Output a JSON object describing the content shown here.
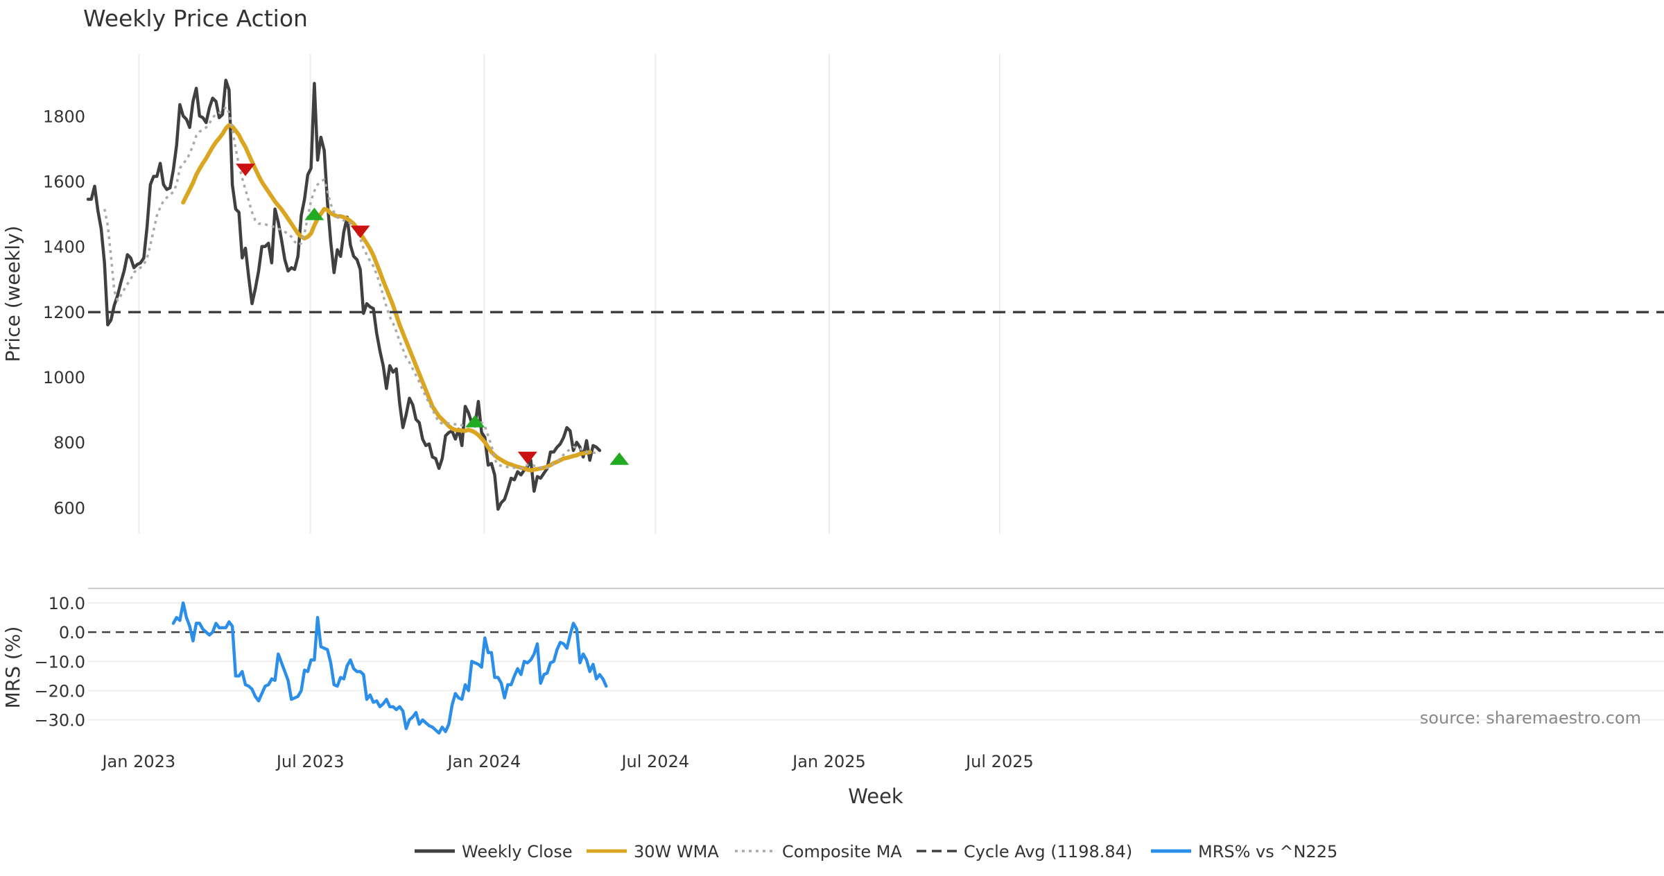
{
  "chart_data": {
    "type": "line",
    "title": "Weekly Price Action",
    "xlabel": "Week",
    "x_ticks": [
      "Jan 2023",
      "Jul 2023",
      "Jan 2024",
      "Jul 2024",
      "Jan 2025",
      "Jul 2025"
    ],
    "price_panel": {
      "ylabel": "Price (weekly)",
      "ylim": [
        520,
        1990
      ],
      "y_ticks": [
        "600",
        "800",
        "1000",
        "1200",
        "1400",
        "1600",
        "1800"
      ],
      "grid": "vertical",
      "series": [
        {
          "name": "Weekly Close",
          "color": "#404040",
          "style": "solid",
          "values": [
            1545,
            1545,
            1585,
            1510,
            1455,
            1350,
            1160,
            1175,
            1220,
            1250,
            1290,
            1325,
            1375,
            1365,
            1335,
            1345,
            1350,
            1365,
            1460,
            1590,
            1615,
            1615,
            1655,
            1590,
            1575,
            1580,
            1635,
            1710,
            1835,
            1800,
            1790,
            1765,
            1845,
            1885,
            1800,
            1795,
            1780,
            1825,
            1855,
            1845,
            1795,
            1805,
            1910,
            1880,
            1590,
            1515,
            1505,
            1365,
            1395,
            1305,
            1225,
            1270,
            1325,
            1400,
            1400,
            1410,
            1350,
            1515,
            1475,
            1420,
            1360,
            1325,
            1335,
            1330,
            1370,
            1495,
            1545,
            1620,
            1640,
            1900,
            1665,
            1735,
            1695,
            1535,
            1415,
            1320,
            1390,
            1370,
            1445,
            1490,
            1405,
            1370,
            1360,
            1330,
            1195,
            1225,
            1215,
            1210,
            1135,
            1080,
            1035,
            965,
            1035,
            1015,
            1025,
            920,
            845,
            885,
            935,
            915,
            870,
            860,
            810,
            790,
            795,
            755,
            750,
            720,
            750,
            820,
            830,
            835,
            810,
            840,
            790,
            910,
            890,
            860,
            850,
            925,
            830,
            815,
            730,
            735,
            700,
            595,
            615,
            625,
            655,
            690,
            685,
            710,
            700,
            715,
            725,
            745,
            650,
            695,
            690,
            705,
            720,
            770,
            770,
            785,
            795,
            815,
            845,
            835,
            775,
            800,
            785,
            755,
            805,
            745,
            790,
            785,
            775
          ],
          "labels": {}
        },
        {
          "name": "30W WMA",
          "color": "#daa520",
          "style": "solid",
          "values": [
            null,
            null,
            null,
            null,
            null,
            null,
            null,
            null,
            null,
            null,
            null,
            null,
            null,
            null,
            null,
            null,
            null,
            null,
            null,
            null,
            null,
            null,
            null,
            null,
            null,
            null,
            null,
            null,
            null,
            1535,
            1555,
            1575,
            1595,
            1620,
            1638,
            1655,
            1670,
            1688,
            1705,
            1720,
            1732,
            1745,
            1762,
            1772,
            1768,
            1755,
            1742,
            1722,
            1705,
            1682,
            1660,
            1638,
            1617,
            1598,
            1583,
            1568,
            1553,
            1538,
            1526,
            1514,
            1500,
            1485,
            1470,
            1455,
            1440,
            1430,
            1425,
            1430,
            1440,
            1465,
            1485,
            1500,
            1515,
            1512,
            1502,
            1497,
            1492,
            1493,
            1490,
            1485,
            1478,
            1470,
            1456,
            1440,
            1425,
            1410,
            1393,
            1373,
            1348,
            1322,
            1295,
            1270,
            1245,
            1220,
            1190,
            1160,
            1135,
            1110,
            1085,
            1060,
            1035,
            1010,
            985,
            960,
            935,
            910,
            895,
            880,
            870,
            860,
            850,
            842,
            838,
            837,
            836,
            835,
            838,
            835,
            830,
            822,
            812,
            800,
            785,
            770,
            760,
            752,
            746,
            740,
            735,
            732,
            728,
            725,
            722,
            720,
            716,
            714,
            716,
            718,
            720,
            722,
            725,
            730,
            736,
            740,
            745,
            750,
            752,
            755,
            758,
            760,
            765,
            766,
            768,
            770
          ],
          "labels": {}
        },
        {
          "name": "Composite MA",
          "color": "#aaaaaa",
          "style": "dotted",
          "values": [
            null,
            null,
            null,
            null,
            null,
            1515,
            1465,
            1370,
            1265,
            1235,
            1250,
            1268,
            1285,
            1300,
            1320,
            1330,
            1335,
            1345,
            1365,
            1405,
            1450,
            1495,
            1520,
            1540,
            1550,
            1558,
            1568,
            1590,
            1640,
            1655,
            1665,
            1685,
            1710,
            1740,
            1752,
            1758,
            1765,
            1778,
            1795,
            1806,
            1810,
            1815,
            1828,
            1810,
            1760,
            1700,
            1650,
            1610,
            1575,
            1540,
            1505,
            1480,
            1470,
            1470,
            1468,
            1465,
            1462,
            1460,
            1455,
            1450,
            1445,
            1440,
            1430,
            1415,
            1405,
            1410,
            1440,
            1490,
            1540,
            1570,
            1590,
            1600,
            1605,
            1570,
            1530,
            1505,
            1490,
            1485,
            1480,
            1478,
            1470,
            1460,
            1445,
            1425,
            1395,
            1375,
            1355,
            1340,
            1315,
            1285,
            1250,
            1215,
            1185,
            1165,
            1140,
            1110,
            1085,
            1060,
            1045,
            1025,
            1005,
            985,
            962,
            940,
            920,
            900,
            880,
            860,
            858,
            858,
            858,
            856,
            855,
            855,
            852,
            850,
            850,
            855,
            860,
            862,
            860,
            850,
            820,
            790,
            748,
            730,
            728,
            726,
            724,
            722,
            722,
            722,
            720,
            725,
            730,
            730,
            728,
            726,
            722,
            720,
            722,
            725,
            735,
            740,
            750,
            762,
            772,
            778,
            785,
            785,
            780,
            775,
            770,
            770,
            768,
            768,
            768
          ],
          "labels": {}
        },
        {
          "name": "Cycle Avg (1198.84)",
          "color": "#404040",
          "style": "dashed",
          "value": 1198.84
        }
      ],
      "markers": [
        {
          "type": "sell",
          "index": 48,
          "value": 1635,
          "color": "#cc1111"
        },
        {
          "type": "buy",
          "index": 69,
          "value": 1500,
          "color": "#22aa22"
        },
        {
          "type": "sell",
          "index": 83,
          "value": 1445,
          "color": "#cc1111"
        },
        {
          "type": "buy",
          "index": 118,
          "value": 865,
          "color": "#22aa22"
        },
        {
          "type": "sell",
          "index": 134,
          "value": 752,
          "color": "#cc1111"
        },
        {
          "type": "buy",
          "index": 162,
          "value": 750,
          "color": "#22aa22"
        }
      ]
    },
    "mrs_panel": {
      "ylabel": "MRS (%)",
      "ylim": [
        -36,
        14
      ],
      "y_ticks": [
        "10.0",
        "0.0",
        "−10.0",
        "−20.0",
        "−30.0"
      ],
      "zero_line": 0,
      "series": [
        {
          "name": "MRS% vs ^N225",
          "color": "#2b8ee8",
          "style": "solid",
          "values": [
            null,
            null,
            null,
            null,
            null,
            null,
            null,
            null,
            null,
            null,
            null,
            null,
            null,
            null,
            null,
            null,
            null,
            null,
            null,
            null,
            null,
            null,
            null,
            null,
            null,
            null,
            3,
            5,
            4,
            10,
            5,
            2,
            -3,
            3,
            3,
            1,
            0,
            -1,
            0,
            3,
            1.5,
            1.5,
            1.5,
            3.5,
            2,
            -15,
            -15,
            -13.5,
            -18,
            -18.5,
            -19.5,
            -22,
            -23.5,
            -21,
            -18.5,
            -18,
            -16,
            -16.5,
            -7.5,
            -10.5,
            -13.5,
            -16.5,
            -23,
            -22.5,
            -22,
            -20,
            -13,
            -13.5,
            -9.5,
            -9.5,
            5,
            -5,
            -5.5,
            -6,
            -10.5,
            -18,
            -18.5,
            -15.5,
            -16,
            -11.5,
            -9.5,
            -12.5,
            -13.5,
            -13.5,
            -14.5,
            -23,
            -21.5,
            -24,
            -23.5,
            -25.5,
            -24.5,
            -23,
            -25.5,
            -25.5,
            -26.5,
            -25.5,
            -27,
            -33,
            -30,
            -29,
            -27.5,
            -31.5,
            -30,
            -31,
            -32,
            -32.5,
            -33.5,
            -34.5,
            -32.5,
            -34,
            -31.5,
            -25,
            -21,
            -22.5,
            -23,
            -18,
            -20,
            -10,
            -10.5,
            -11,
            -12,
            -2,
            -7,
            -7,
            -15.5,
            -15.5,
            -17.5,
            -22.5,
            -18,
            -18,
            -15,
            -12.5,
            -14.5,
            -10,
            -10.5,
            -9.5,
            -7.5,
            -4,
            -17.5,
            -14.5,
            -14,
            -10.5,
            -10,
            -6,
            -3.5,
            -4,
            -5.5,
            -1,
            3,
            1,
            -10.5,
            -7.5,
            -9.5,
            -13.5,
            -11,
            -16,
            -14.5,
            -16,
            -18.5
          ],
          "labels": {}
        }
      ]
    },
    "legend": {
      "position": "bottom",
      "entries": [
        {
          "label": "Weekly Close",
          "color": "#404040",
          "style": "solid"
        },
        {
          "label": "30W WMA",
          "color": "#daa520",
          "style": "solid"
        },
        {
          "label": "Composite MA",
          "color": "#aaaaaa",
          "style": "dotted"
        },
        {
          "label": "Cycle Avg (1198.84)",
          "color": "#404040",
          "style": "dashed"
        },
        {
          "label": "MRS% vs ^N225",
          "color": "#2b8ee8",
          "style": "solid"
        }
      ]
    },
    "annotation": "source: sharemaestro.com"
  }
}
